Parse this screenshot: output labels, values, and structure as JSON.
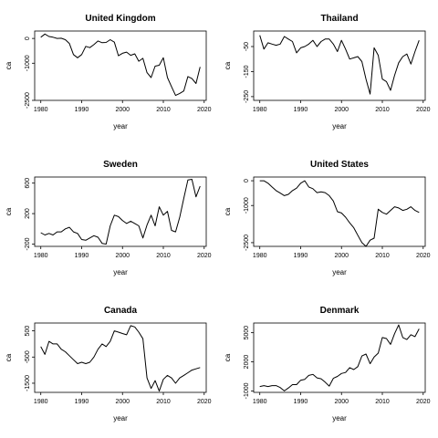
{
  "chart_data": [
    {
      "type": "line",
      "title": "United Kingdom",
      "xlabel": "year",
      "ylabel": "ca",
      "xlim": [
        1978.5,
        2020.5
      ],
      "ylim": [
        -2500,
        300
      ],
      "xticks": [
        1980,
        1990,
        2000,
        2010,
        2020
      ],
      "yticks": [
        0,
        -1000,
        -2500
      ],
      "x": [
        1980,
        1981,
        1982,
        1983,
        1984,
        1985,
        1986,
        1987,
        1988,
        1989,
        1990,
        1991,
        1992,
        1993,
        1994,
        1995,
        1996,
        1997,
        1998,
        1999,
        2000,
        2001,
        2002,
        2003,
        2004,
        2005,
        2006,
        2007,
        2008,
        2009,
        2010,
        2011,
        2012,
        2013,
        2014,
        2015,
        2016,
        2017,
        2018,
        2019
      ],
      "values": [
        50,
        180,
        80,
        50,
        0,
        10,
        -50,
        -200,
        -650,
        -780,
        -650,
        -320,
        -370,
        -250,
        -100,
        -170,
        -160,
        -50,
        -150,
        -700,
        -600,
        -550,
        -680,
        -620,
        -920,
        -800,
        -1380,
        -1580,
        -1120,
        -1080,
        -780,
        -1580,
        -1950,
        -2300,
        -2220,
        -2120,
        -1540,
        -1620,
        -1820,
        -1150
      ]
    },
    {
      "type": "line",
      "title": "Thailand",
      "xlabel": "year",
      "ylabel": "ca",
      "xlim": [
        1978.5,
        2020.5
      ],
      "ylim": [
        -265,
        12
      ],
      "xticks": [
        1980,
        1990,
        2000,
        2010,
        2020
      ],
      "yticks": [
        -50,
        -150,
        -250
      ],
      "x": [
        1980,
        1981,
        1982,
        1983,
        1984,
        1985,
        1986,
        1987,
        1988,
        1989,
        1990,
        1991,
        1992,
        1993,
        1994,
        1995,
        1996,
        1997,
        1998,
        1999,
        2000,
        2001,
        2002,
        2003,
        2004,
        2005,
        2006,
        2007,
        2008,
        2009,
        2010,
        2011,
        2012,
        2013,
        2014,
        2015,
        2016,
        2017,
        2018,
        2019
      ],
      "values": [
        -5,
        -60,
        -35,
        -40,
        -45,
        -40,
        -10,
        -20,
        -30,
        -75,
        -55,
        -50,
        -40,
        -25,
        -50,
        -30,
        -20,
        -20,
        -40,
        -70,
        -25,
        -60,
        -100,
        -95,
        -90,
        -110,
        -180,
        -240,
        -55,
        -85,
        -180,
        -190,
        -225,
        -165,
        -115,
        -90,
        -80,
        -120,
        -70,
        -25
      ]
    },
    {
      "type": "line",
      "title": "Sweden",
      "xlabel": "year",
      "ylabel": "ca",
      "xlim": [
        1978.5,
        2020.5
      ],
      "ylim": [
        -230,
        680
      ],
      "xticks": [
        1980,
        1990,
        2000,
        2010,
        2020
      ],
      "yticks": [
        600,
        200,
        -200
      ],
      "x": [
        1980,
        1981,
        1982,
        1983,
        1984,
        1985,
        1986,
        1987,
        1988,
        1989,
        1990,
        1991,
        1992,
        1993,
        1994,
        1995,
        1996,
        1997,
        1998,
        1999,
        2000,
        2001,
        2002,
        2003,
        2004,
        2005,
        2006,
        2007,
        2008,
        2009,
        2010,
        2011,
        2012,
        2013,
        2014,
        2015,
        2016,
        2017,
        2018,
        2019
      ],
      "values": [
        -50,
        -80,
        -60,
        -80,
        -40,
        -40,
        0,
        20,
        -40,
        -60,
        -140,
        -150,
        -120,
        -90,
        -110,
        -190,
        -200,
        40,
        180,
        160,
        110,
        70,
        100,
        70,
        40,
        -120,
        50,
        180,
        40,
        290,
        180,
        230,
        -20,
        -40,
        150,
        400,
        640,
        650,
        420,
        560
      ]
    },
    {
      "type": "line",
      "title": "United States",
      "xlabel": "year",
      "ylabel": "ca",
      "xlim": [
        1978.5,
        2020.5
      ],
      "ylim": [
        -2650,
        150
      ],
      "xticks": [
        1980,
        1990,
        2000,
        2010,
        2020
      ],
      "yticks": [
        0,
        -1000,
        -2500
      ],
      "x": [
        1980,
        1981,
        1982,
        1983,
        1984,
        1985,
        1986,
        1987,
        1988,
        1989,
        1990,
        1991,
        1992,
        1993,
        1994,
        1995,
        1996,
        1997,
        1998,
        1999,
        2000,
        2001,
        2002,
        2003,
        2004,
        2005,
        2006,
        2007,
        2008,
        2009,
        2010,
        2011,
        2012,
        2013,
        2014,
        2015,
        2016,
        2017,
        2018,
        2019
      ],
      "values": [
        0,
        0,
        -100,
        -250,
        -400,
        -500,
        -600,
        -550,
        -400,
        -300,
        -100,
        0,
        -250,
        -320,
        -480,
        -450,
        -480,
        -600,
        -820,
        -1250,
        -1300,
        -1470,
        -1700,
        -1900,
        -2200,
        -2500,
        -2650,
        -2400,
        -2320,
        -1150,
        -1280,
        -1350,
        -1200,
        -1050,
        -1100,
        -1200,
        -1150,
        -1050,
        -1200,
        -1280
      ]
    },
    {
      "type": "line",
      "title": "Canada",
      "xlabel": "year",
      "ylabel": "ca",
      "xlim": [
        1978.5,
        2020.5
      ],
      "ylim": [
        -1850,
        800
      ],
      "xticks": [
        1980,
        1990,
        2000,
        2010,
        2020
      ],
      "yticks": [
        500,
        -500,
        -1500
      ],
      "x": [
        1980,
        1981,
        1982,
        1983,
        1984,
        1985,
        1986,
        1987,
        1988,
        1989,
        1990,
        1991,
        1992,
        1993,
        1994,
        1995,
        1996,
        1997,
        1998,
        1999,
        2000,
        2001,
        2002,
        2003,
        2004,
        2005,
        2006,
        2007,
        2008,
        2009,
        2010,
        2011,
        2012,
        2013,
        2014,
        2015,
        2016,
        2017,
        2018,
        2019
      ],
      "values": [
        -100,
        -400,
        100,
        0,
        0,
        -200,
        -300,
        -450,
        -600,
        -750,
        -700,
        -750,
        -700,
        -500,
        -200,
        0,
        -100,
        100,
        500,
        450,
        400,
        350,
        700,
        650,
        450,
        200,
        -1300,
        -1700,
        -1400,
        -1800,
        -1350,
        -1200,
        -1300,
        -1500,
        -1300,
        -1200,
        -1100,
        -1000,
        -950,
        -900
      ]
    },
    {
      "type": "line",
      "title": "Denmark",
      "xlabel": "year",
      "ylabel": "ca",
      "xlim": [
        1978.5,
        2020.5
      ],
      "ylim": [
        -1150,
        6000
      ],
      "xticks": [
        1980,
        1990,
        2000,
        2010,
        2020
      ],
      "yticks": [
        5000,
        2000,
        -1000
      ],
      "x": [
        1980,
        1981,
        1982,
        1983,
        1984,
        1985,
        1986,
        1987,
        1988,
        1989,
        1990,
        1991,
        1992,
        1993,
        1994,
        1995,
        1996,
        1997,
        1998,
        1999,
        2000,
        2001,
        2002,
        2003,
        2004,
        2005,
        2006,
        2007,
        2008,
        2009,
        2010,
        2011,
        2012,
        2013,
        2014,
        2015,
        2016,
        2017,
        2018,
        2019
      ],
      "values": [
        -550,
        -450,
        -550,
        -450,
        -450,
        -650,
        -1000,
        -700,
        -350,
        -350,
        100,
        200,
        600,
        700,
        350,
        250,
        -100,
        -500,
        300,
        500,
        800,
        900,
        1400,
        1200,
        1500,
        2600,
        2800,
        1800,
        2500,
        2900,
        4500,
        4400,
        3800,
        4900,
        5800,
        4500,
        4300,
        4800,
        4600,
        5400
      ]
    }
  ]
}
